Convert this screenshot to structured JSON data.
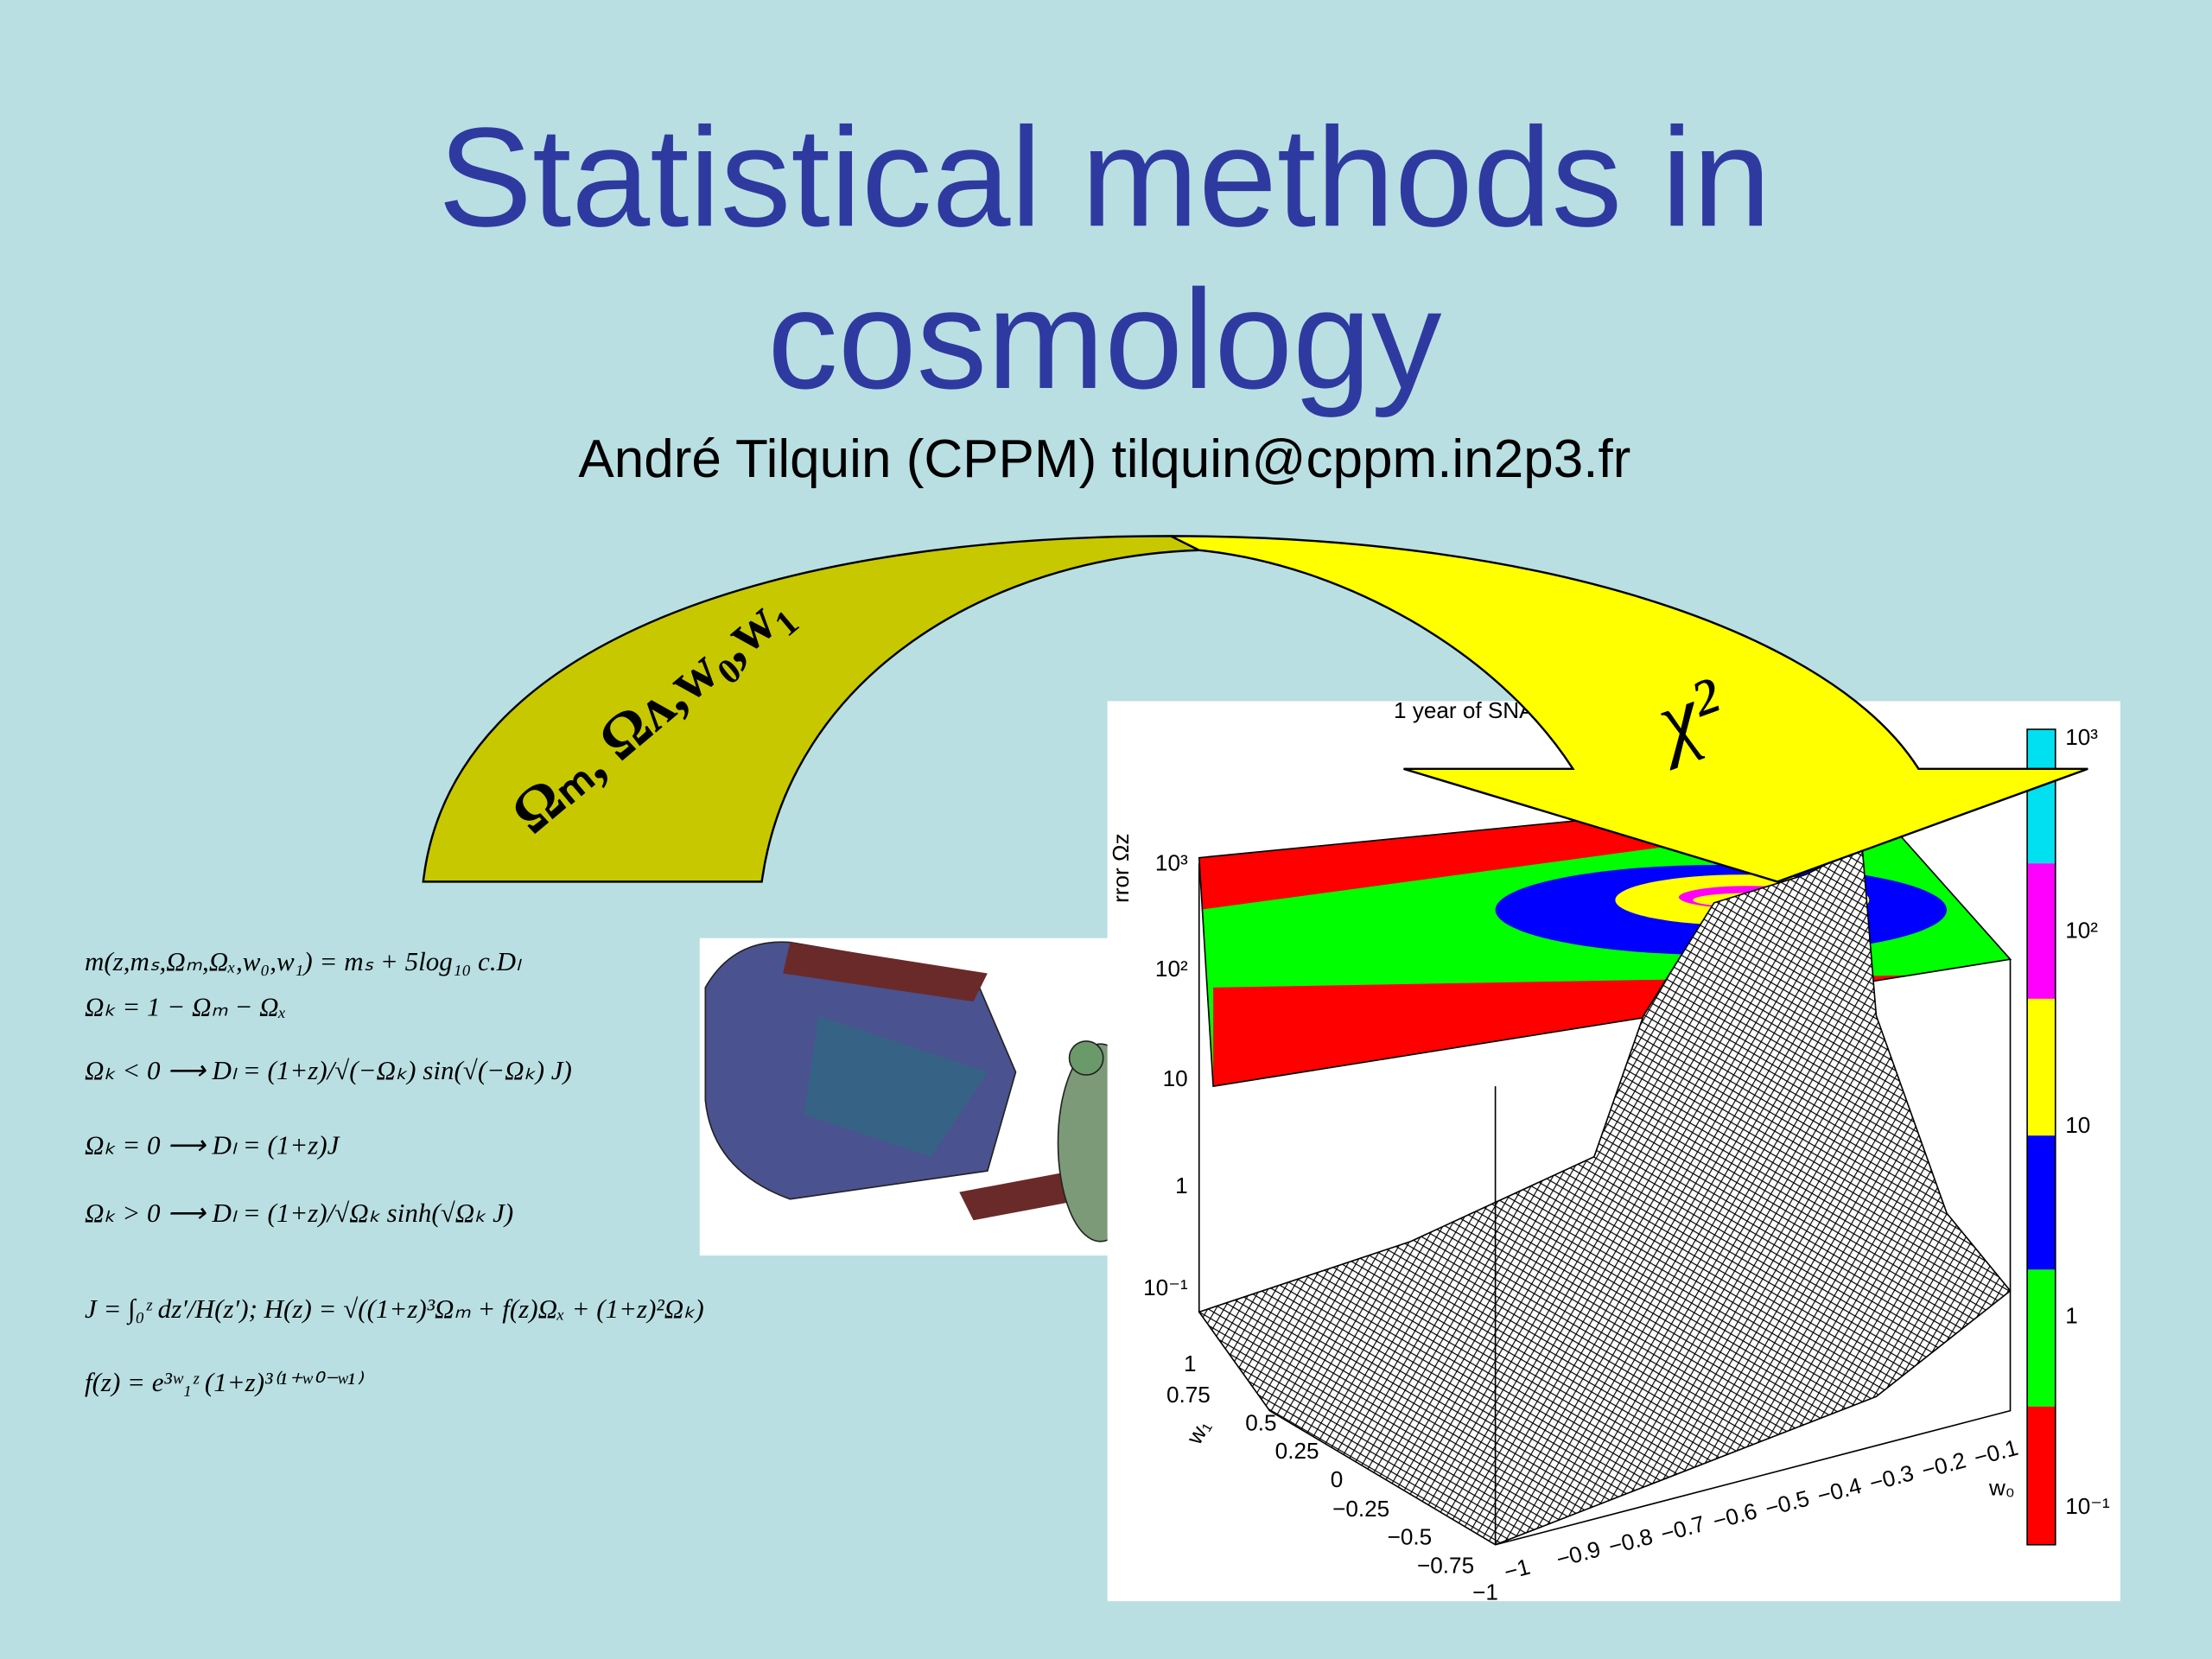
{
  "slide": {
    "title": [
      "Statistical methods in",
      "cosmology"
    ],
    "subtitle": "André Tilquin (CPPM) tilquin@cppm.in2p3.fr",
    "arrow": {
      "input_label": "Ωₘ, Ωᴧ,w₀,w₁",
      "output_label": "χ²"
    },
    "equations": [
      "m(z,mₛ,Ωₘ,Ωₓ,w₀,w₁) = mₛ + 5log₁₀ c.Dₗ",
      "Ωₖ = 1 − Ωₘ − Ωₓ",
      "Ωₖ < 0 ⟶ Dₗ = (1+z)/√(−Ωₖ) sin(√(−Ωₖ) J)",
      "Ωₖ = 0 ⟶ Dₗ = (1+z)J",
      "Ωₖ > 0 ⟶ Dₗ = (1+z)/√Ωₖ sinh(√Ωₖ J)",
      "J = ∫₀ᶻ dz′/H(z′);   H(z) = √((1+z)³Ωₘ + f(z)Ωₓ + (1+z)²Ωₖ)",
      "f(z) = e³ʷ₁ᶻ (1+z)³⁽¹⁺ʷ⁰⁻ʷ¹⁾"
    ],
    "plot": {
      "title": "1 year of SNA",
      "z_axis_label": "rror Ωz",
      "z_ticks": [
        "10³",
        "10²",
        "10",
        "1",
        "10⁻¹"
      ],
      "x_axis_label": "w₀",
      "x_ticks": [
        "−1",
        "−0.9",
        "−0.8",
        "−0.7",
        "−0.6",
        "−0.5",
        "−0.4",
        "−0.3",
        "−0.2",
        "−0.1"
      ],
      "y_axis_label": "w₁",
      "y_ticks": [
        "1",
        "0.75",
        "0.5",
        "0.25",
        "0",
        "−0.25",
        "−0.5",
        "−0.75",
        "−1"
      ],
      "colorbar_ticks": [
        "10³",
        "10²",
        "10",
        "1",
        "10⁻¹"
      ]
    }
  }
}
